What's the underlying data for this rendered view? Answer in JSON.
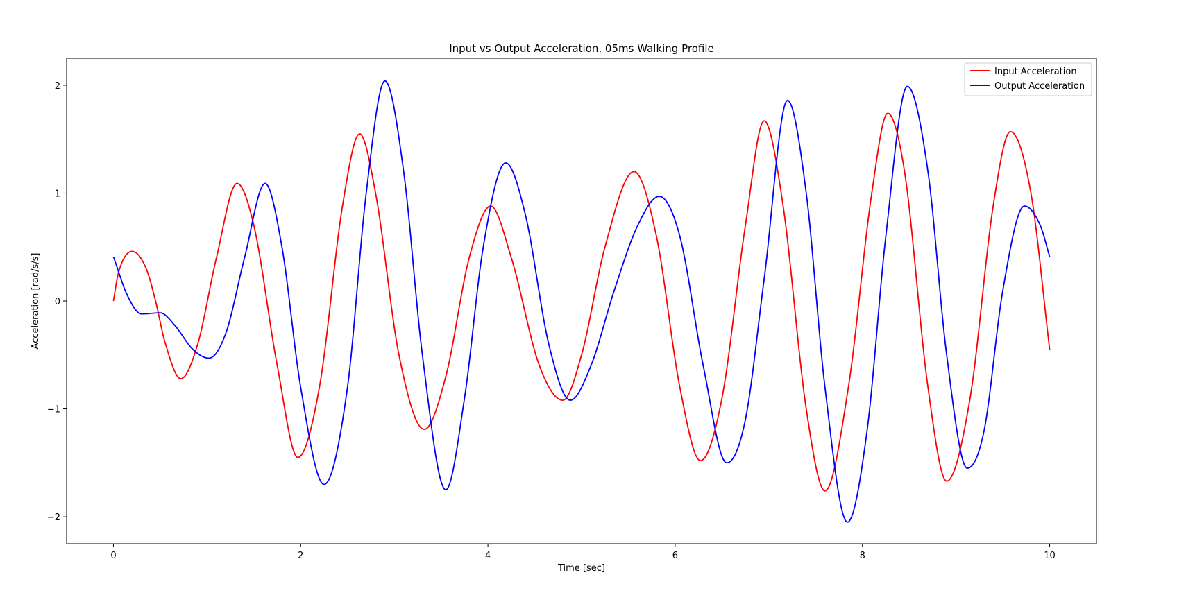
{
  "chart_data": {
    "type": "line",
    "title": "Input vs Output Acceleration, 05ms Walking Profile",
    "xlabel": "Time [sec]",
    "ylabel": "Acceleration [rad/s/s]",
    "xlim": [
      -0.5,
      10.5
    ],
    "ylim": [
      -2.25,
      2.25
    ],
    "xticks": [
      0,
      2,
      4,
      6,
      8,
      10
    ],
    "xtick_labels": [
      "0",
      "2",
      "4",
      "6",
      "8",
      "10"
    ],
    "yticks": [
      -2,
      -1,
      0,
      1,
      2
    ],
    "ytick_labels": [
      "−2",
      "−1",
      "0",
      "1",
      "2"
    ],
    "grid": false,
    "legend_position": "upper right",
    "series": [
      {
        "name": "Input Acceleration",
        "color": "#ff0000",
        "x": [
          0,
          0.05,
          0.2,
          0.35,
          0.45,
          0.55,
          0.72,
          0.9,
          1.1,
          1.32,
          1.5,
          1.75,
          1.97,
          2.2,
          2.45,
          2.63,
          2.8,
          3.05,
          3.32,
          3.55,
          3.8,
          4.03,
          4.25,
          4.55,
          4.8,
          5.0,
          5.25,
          5.56,
          5.8,
          6.05,
          6.27,
          6.5,
          6.75,
          6.95,
          7.15,
          7.4,
          7.6,
          7.85,
          8.1,
          8.27,
          8.45,
          8.7,
          8.9,
          9.15,
          9.4,
          9.58,
          9.8,
          10.0
        ],
        "y": [
          0.0,
          0.25,
          0.46,
          0.3,
          0.0,
          -0.38,
          -0.72,
          -0.4,
          0.4,
          1.09,
          0.7,
          -0.6,
          -1.45,
          -0.8,
          0.9,
          1.55,
          1.0,
          -0.5,
          -1.19,
          -0.7,
          0.4,
          0.88,
          0.4,
          -0.6,
          -0.92,
          -0.5,
          0.5,
          1.2,
          0.6,
          -0.8,
          -1.48,
          -0.9,
          0.7,
          1.67,
          0.9,
          -1.0,
          -1.76,
          -0.8,
          1.0,
          1.74,
          1.2,
          -0.8,
          -1.67,
          -0.9,
          0.9,
          1.57,
          1.0,
          -0.45
        ]
      },
      {
        "name": "Output Acceleration",
        "color": "#0000ff",
        "x": [
          0,
          0.15,
          0.3,
          0.5,
          0.65,
          0.85,
          1.02,
          1.2,
          1.4,
          1.62,
          1.8,
          2.0,
          2.25,
          2.5,
          2.7,
          2.9,
          3.1,
          3.3,
          3.55,
          3.75,
          3.95,
          4.19,
          4.4,
          4.65,
          4.88,
          5.1,
          5.35,
          5.6,
          5.83,
          6.05,
          6.3,
          6.55,
          6.75,
          6.95,
          7.2,
          7.4,
          7.6,
          7.84,
          8.05,
          8.25,
          8.48,
          8.7,
          8.9,
          9.12,
          9.3,
          9.5,
          9.73,
          9.9,
          10.0
        ],
        "y": [
          0.41,
          0.05,
          -0.12,
          -0.11,
          -0.22,
          -0.45,
          -0.53,
          -0.3,
          0.4,
          1.09,
          0.5,
          -0.8,
          -1.7,
          -0.8,
          1.0,
          2.04,
          1.2,
          -0.5,
          -1.75,
          -0.9,
          0.5,
          1.28,
          0.8,
          -0.4,
          -0.92,
          -0.6,
          0.1,
          0.7,
          0.97,
          0.6,
          -0.6,
          -1.5,
          -1.1,
          0.2,
          1.86,
          1.0,
          -0.8,
          -2.05,
          -1.2,
          0.6,
          1.99,
          1.2,
          -0.5,
          -1.55,
          -1.2,
          0.1,
          0.88,
          0.7,
          0.41
        ]
      }
    ]
  }
}
